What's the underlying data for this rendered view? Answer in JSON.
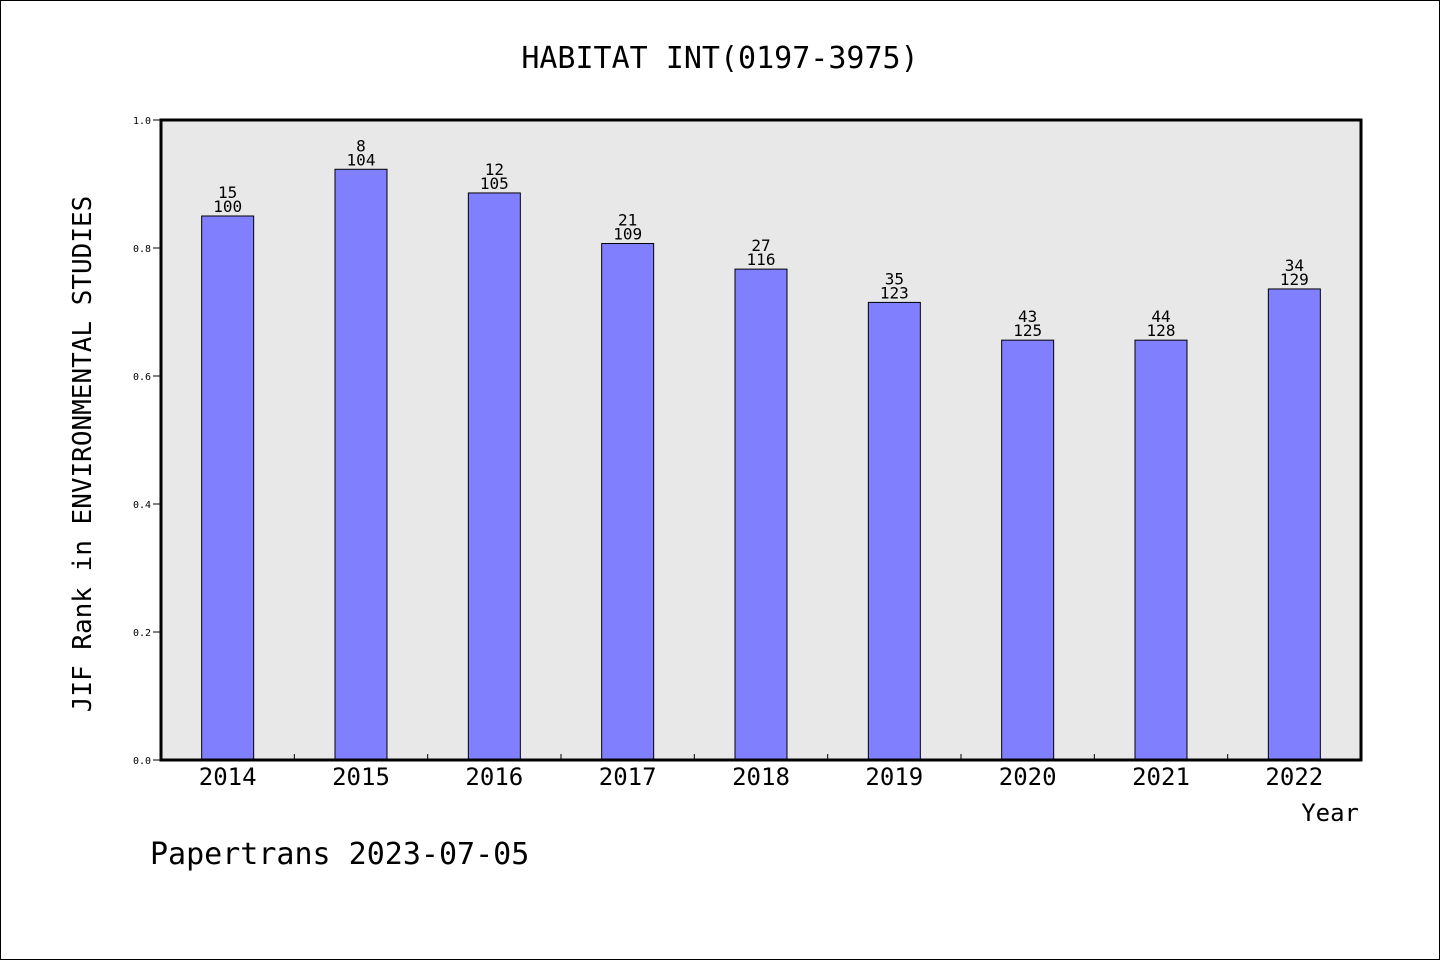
{
  "chart_data": {
    "type": "bar",
    "title": "HABITAT INT(0197-3975)",
    "xlabel": "Year",
    "ylabel": "JIF Rank in ENVIRONMENTAL STUDIES",
    "categories": [
      "2014",
      "2015",
      "2016",
      "2017",
      "2018",
      "2019",
      "2020",
      "2021",
      "2022"
    ],
    "values": [
      0.85,
      0.923,
      0.886,
      0.807,
      0.767,
      0.715,
      0.656,
      0.656,
      0.736
    ],
    "rank_labels": [
      "15",
      "8",
      "12",
      "21",
      "27",
      "35",
      "43",
      "44",
      "34"
    ],
    "total_labels": [
      "100",
      "104",
      "105",
      "109",
      "116",
      "123",
      "125",
      "128",
      "129"
    ],
    "ylim": [
      0,
      1.0
    ],
    "yticks": [
      "0.0",
      "0.2",
      "0.4",
      "0.6",
      "0.8",
      "1.0"
    ],
    "grid": false,
    "legend": "none",
    "colors": {
      "bar": "#8080ff",
      "plot_background": "#e8e8e8",
      "axis": "#000000"
    }
  },
  "footer": {
    "text": "Papertrans 2023-07-05"
  }
}
